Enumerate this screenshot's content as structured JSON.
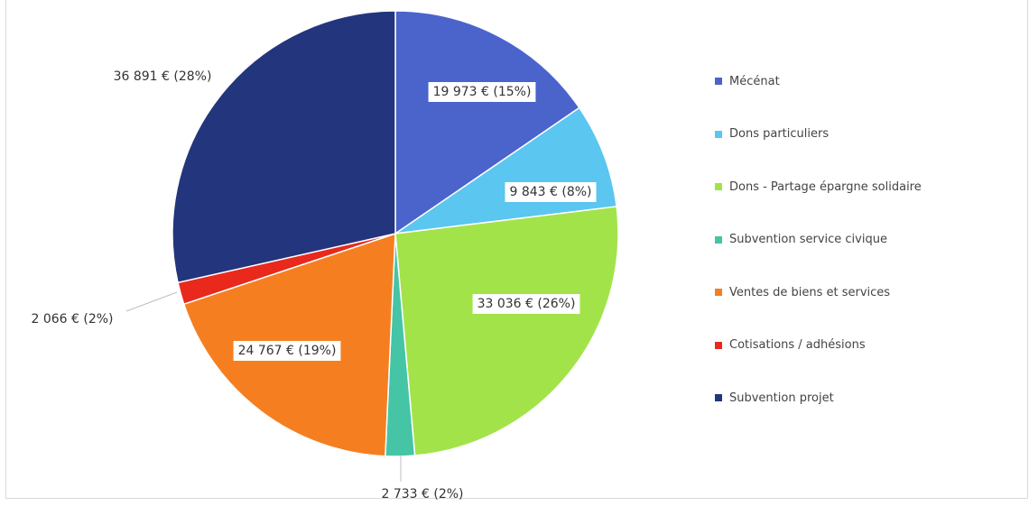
{
  "chart_data": {
    "type": "pie",
    "title": "",
    "slices": [
      {
        "name": "Mécénat",
        "value": 19973,
        "label": "19 973 € (15%)",
        "color": "#4a64cc"
      },
      {
        "name": "Dons particuliers",
        "value": 9843,
        "label": "9 843 € (8%)",
        "color": "#5bc6f0"
      },
      {
        "name": "Dons - Partage épargne solidaire",
        "value": 33036,
        "label": "33 036 € (26%)",
        "color": "#a3e34a"
      },
      {
        "name": "Subvention service civique",
        "value": 2733,
        "label": "2 733 € (2%)",
        "color": "#45c4a6"
      },
      {
        "name": "Ventes de biens et services",
        "value": 24767,
        "label": "24 767 € (19%)",
        "color": "#f57f20"
      },
      {
        "name": "Cotisations / adhésions",
        "value": 2066,
        "label": "2 066 € (2%)",
        "color": "#e8291c"
      },
      {
        "name": "Subvention projet",
        "value": 36891,
        "label": "36 891 € (28%)",
        "color": "#23357c"
      }
    ],
    "legend_position": "right"
  }
}
